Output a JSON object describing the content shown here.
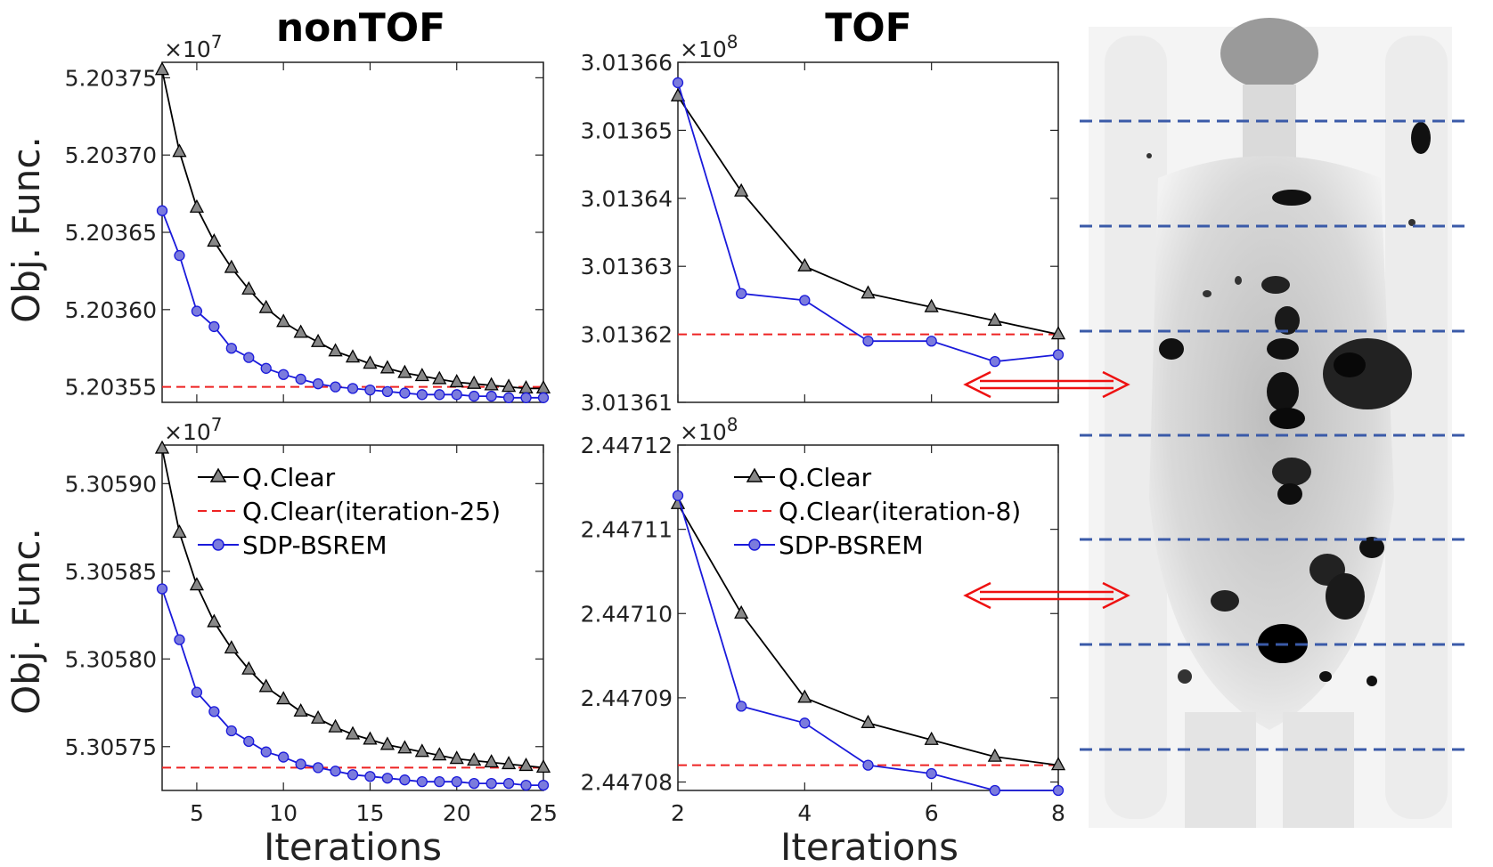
{
  "figure": {
    "col_titles": [
      "nonTOF",
      "TOF"
    ],
    "ylabel": "Obj. Func.",
    "xlabel": "Iterations",
    "colors": {
      "qclear": "#000000",
      "marker_fill": "#888888",
      "ref": "#ee2222",
      "sdp": "#1a1adb",
      "sdp_marker": "#7b7bdd",
      "arrow": "#ee1111",
      "scan_line": "#3a5aa8"
    }
  },
  "legend": {
    "qclear": "Q.Clear",
    "ref_nontof": "Q.Clear(iteration-25)",
    "ref_tof": "Q.Clear(iteration-8)",
    "sdp": "SDP-BSREM"
  },
  "chart_data": [
    {
      "type": "line",
      "panel": "nonTOF-top",
      "title": "nonTOF",
      "xlabel": "",
      "ylabel": "Obj. Func.",
      "exponent_label": "×10",
      "exponent": "7",
      "xlim": [
        3,
        25
      ],
      "ylim": [
        5.20354,
        5.20376
      ],
      "xticks": [
        5,
        10,
        15,
        20,
        25
      ],
      "xticklabels": [
        "",
        "",
        "",
        "",
        ""
      ],
      "yticks": [
        5.20355,
        5.2036,
        5.20365,
        5.2037,
        5.20375
      ],
      "yticklabels": [
        "5.20355",
        "5.20360",
        "5.20365",
        "5.20370",
        "5.20375"
      ],
      "ref_value": 5.20355,
      "series": [
        {
          "name": "Q.Clear",
          "x": [
            3,
            4,
            5,
            6,
            7,
            8,
            9,
            10,
            11,
            12,
            13,
            14,
            15,
            16,
            17,
            18,
            19,
            20,
            21,
            22,
            23,
            24,
            25
          ],
          "values": [
            5.203755,
            5.203702,
            5.203666,
            5.203644,
            5.203627,
            5.203613,
            5.203601,
            5.203592,
            5.203585,
            5.203579,
            5.203573,
            5.203569,
            5.203565,
            5.203562,
            5.203559,
            5.203557,
            5.203555,
            5.203553,
            5.203552,
            5.203551,
            5.20355,
            5.203549,
            5.203549
          ]
        },
        {
          "name": "SDP-BSREM",
          "x": [
            3,
            4,
            5,
            6,
            7,
            8,
            9,
            10,
            11,
            12,
            13,
            14,
            15,
            16,
            17,
            18,
            19,
            20,
            21,
            22,
            23,
            24,
            25
          ],
          "values": [
            5.203664,
            5.203635,
            5.203599,
            5.203589,
            5.203575,
            5.203569,
            5.203562,
            5.203558,
            5.203555,
            5.203552,
            5.20355,
            5.203549,
            5.203548,
            5.203547,
            5.203546,
            5.203545,
            5.203545,
            5.203545,
            5.203544,
            5.203544,
            5.203543,
            5.203543,
            5.203543
          ]
        }
      ]
    },
    {
      "type": "line",
      "panel": "TOF-top",
      "title": "TOF",
      "xlabel": "",
      "ylabel": "",
      "exponent_label": "×10",
      "exponent": "8",
      "xlim": [
        2,
        8
      ],
      "ylim": [
        3.01361,
        3.01366
      ],
      "xticks": [
        2,
        4,
        6,
        8
      ],
      "xticklabels": [
        "",
        "",
        "",
        ""
      ],
      "yticks": [
        3.01361,
        3.01362,
        3.01363,
        3.01364,
        3.01365,
        3.01366
      ],
      "yticklabels": [
        "3.01361",
        "3.01362",
        "3.01363",
        "3.01364",
        "3.01365",
        "3.01366"
      ],
      "ref_value": 3.01362,
      "series": [
        {
          "name": "Q.Clear",
          "x": [
            2,
            3,
            4,
            5,
            6,
            7,
            8
          ],
          "values": [
            3.013655,
            3.013641,
            3.01363,
            3.013626,
            3.013624,
            3.013622,
            3.01362
          ]
        },
        {
          "name": "SDP-BSREM",
          "x": [
            2,
            3,
            4,
            5,
            6,
            7,
            8
          ],
          "values": [
            3.013657,
            3.013626,
            3.013625,
            3.013619,
            3.013619,
            3.013616,
            3.013617
          ]
        }
      ]
    },
    {
      "type": "line",
      "panel": "nonTOF-bottom",
      "title": "",
      "xlabel": "Iterations",
      "ylabel": "Obj. Func.",
      "exponent_label": "×10",
      "exponent": "7",
      "xlim": [
        3,
        25
      ],
      "ylim": [
        5.305725,
        5.305922
      ],
      "xticks": [
        5,
        10,
        15,
        20,
        25
      ],
      "xticklabels": [
        "5",
        "10",
        "15",
        "20",
        "25"
      ],
      "yticks": [
        5.30575,
        5.3058,
        5.30585,
        5.3059
      ],
      "yticklabels": [
        "5.30575",
        "5.30580",
        "5.30585",
        "5.30590"
      ],
      "ref_value": 5.305738,
      "series": [
        {
          "name": "Q.Clear",
          "x": [
            3,
            4,
            5,
            6,
            7,
            8,
            9,
            10,
            11,
            12,
            13,
            14,
            15,
            16,
            17,
            18,
            19,
            20,
            21,
            22,
            23,
            24,
            25
          ],
          "values": [
            5.30592,
            5.305872,
            5.305842,
            5.305821,
            5.305806,
            5.305794,
            5.305784,
            5.305777,
            5.30577,
            5.305766,
            5.305761,
            5.305757,
            5.305754,
            5.305751,
            5.305749,
            5.305747,
            5.305745,
            5.305743,
            5.305742,
            5.305741,
            5.30574,
            5.305739,
            5.305738
          ]
        },
        {
          "name": "SDP-BSREM",
          "x": [
            3,
            4,
            5,
            6,
            7,
            8,
            9,
            10,
            11,
            12,
            13,
            14,
            15,
            16,
            17,
            18,
            19,
            20,
            21,
            22,
            23,
            24,
            25
          ],
          "values": [
            5.30584,
            5.305811,
            5.305781,
            5.30577,
            5.305759,
            5.305753,
            5.305747,
            5.305744,
            5.30574,
            5.305738,
            5.305736,
            5.305734,
            5.305733,
            5.305732,
            5.305731,
            5.30573,
            5.30573,
            5.30573,
            5.305729,
            5.305729,
            5.305729,
            5.305728,
            5.305728
          ]
        }
      ]
    },
    {
      "type": "line",
      "panel": "TOF-bottom",
      "title": "",
      "xlabel": "Iterations",
      "ylabel": "",
      "exponent_label": "×10",
      "exponent": "8",
      "xlim": [
        2,
        8
      ],
      "ylim": [
        2.447079,
        2.44712
      ],
      "xticks": [
        2,
        4,
        6,
        8
      ],
      "xticklabels": [
        "2",
        "4",
        "6",
        "8"
      ],
      "yticks": [
        2.44708,
        2.44709,
        2.4471,
        2.44711,
        2.44712
      ],
      "yticklabels": [
        "2.44708",
        "2.44709",
        "2.44710",
        "2.44711",
        "2.44712"
      ],
      "ref_value": 2.447082,
      "series": [
        {
          "name": "Q.Clear",
          "x": [
            2,
            3,
            4,
            5,
            6,
            7,
            8
          ],
          "values": [
            2.447113,
            2.4471,
            2.44709,
            2.447087,
            2.447085,
            2.447083,
            2.447082
          ]
        },
        {
          "name": "SDP-BSREM",
          "x": [
            2,
            3,
            4,
            5,
            6,
            7,
            8
          ],
          "values": [
            2.447114,
            2.447089,
            2.447087,
            2.447082,
            2.447081,
            2.447079,
            2.447079
          ]
        }
      ]
    }
  ]
}
